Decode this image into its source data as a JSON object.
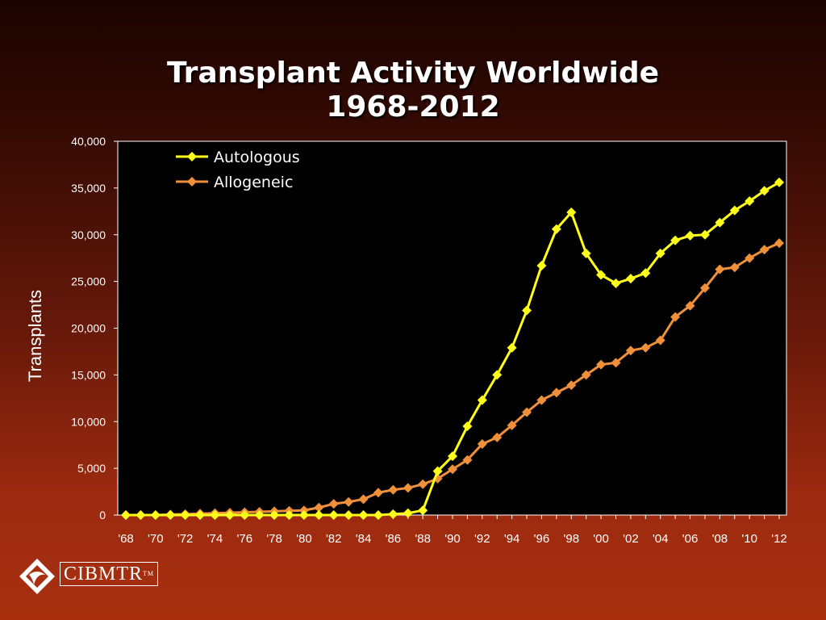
{
  "slide": {
    "title_line1": "Transplant Activity Worldwide",
    "title_line2": "1968-2012"
  },
  "logo": {
    "text": "CIBMTR",
    "tm": "TM"
  },
  "colors": {
    "autologous": "#ffff1a",
    "allogeneic": "#f0903a",
    "plot_bg": "#000000",
    "text": "#ffffff"
  },
  "chart_data": {
    "type": "line",
    "title": "Transplant Activity Worldwide 1968-2012",
    "xlabel": "",
    "ylabel": "Transplants",
    "ylim": [
      0,
      40000
    ],
    "yticks": [
      "0",
      "5,000",
      "10,000",
      "15,000",
      "20,000",
      "25,000",
      "30,000",
      "35,000",
      "40,000"
    ],
    "xtick_labels": [
      "'68",
      "'70",
      "'72",
      "'74",
      "'76",
      "'78",
      "'80",
      "'82",
      "'84",
      "'86",
      "'88",
      "'90",
      "'92",
      "'94",
      "'96",
      "'98",
      "'00",
      "'02",
      "'04",
      "'06",
      "'08",
      "'10",
      "'12"
    ],
    "x": [
      1968,
      1969,
      1970,
      1971,
      1972,
      1973,
      1974,
      1975,
      1976,
      1977,
      1978,
      1979,
      1980,
      1981,
      1982,
      1983,
      1984,
      1985,
      1986,
      1987,
      1988,
      1989,
      1990,
      1991,
      1992,
      1993,
      1994,
      1995,
      1996,
      1997,
      1998,
      1999,
      2000,
      2001,
      2002,
      2003,
      2004,
      2005,
      2006,
      2007,
      2008,
      2009,
      2010,
      2011,
      2012
    ],
    "grid": false,
    "legend": "top-left",
    "series": [
      {
        "name": "Autologous",
        "values": [
          0,
          0,
          0,
          0,
          0,
          0,
          0,
          0,
          0,
          0,
          0,
          0,
          0,
          0,
          0,
          0,
          0,
          0,
          100,
          200,
          500,
          4700,
          6300,
          9500,
          12300,
          15000,
          17900,
          21900,
          26700,
          30600,
          32400,
          28000,
          25700,
          24800,
          25300,
          25900,
          28000,
          29400,
          29900,
          30000,
          31300,
          32600,
          33600,
          34700,
          35600
        ]
      },
      {
        "name": "Allogeneic",
        "values": [
          0,
          0,
          0,
          50,
          100,
          150,
          200,
          250,
          300,
          350,
          400,
          450,
          500,
          800,
          1200,
          1400,
          1700,
          2400,
          2700,
          2900,
          3300,
          3900,
          4900,
          5900,
          7600,
          8300,
          9600,
          11000,
          12300,
          13100,
          13900,
          15000,
          16100,
          16300,
          17600,
          17900,
          18700,
          21200,
          22400,
          24300,
          26300,
          26500,
          27500,
          28400,
          29100
        ]
      }
    ]
  }
}
